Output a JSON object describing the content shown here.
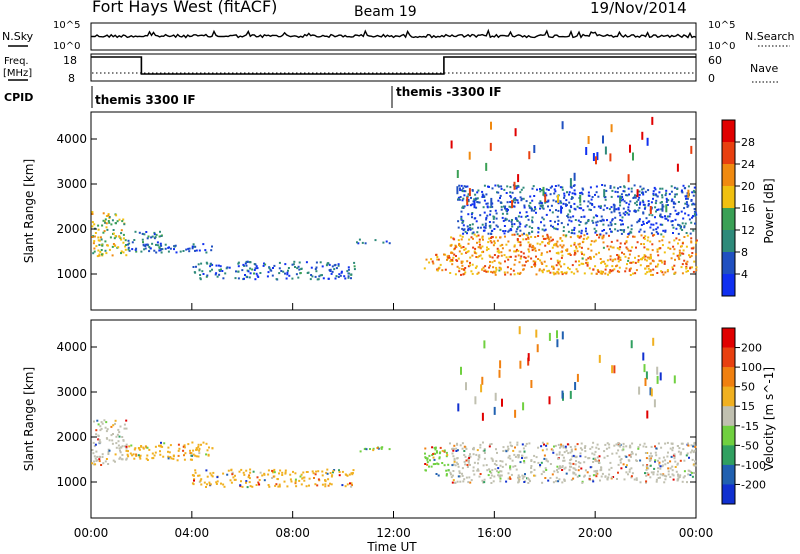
{
  "header": {
    "station": "Fort Hays West (fitACF)",
    "beam": "Beam 19",
    "date": "19/Nov/2014"
  },
  "noise_panel": {
    "left_label": "N.Sky",
    "right_label": "N.Search",
    "left_ticks": [
      "10^5",
      "10^0"
    ],
    "right_ticks": [
      "10^5",
      "10^0"
    ]
  },
  "freq_panel": {
    "left_label_1": "Freq.",
    "left_label_2": "[MHz]",
    "right_label": "Nave",
    "left_ticks": [
      18,
      8
    ],
    "right_ticks": [
      60,
      0
    ],
    "freq_steps": [
      {
        "start_hr": 0,
        "end_hr": 2,
        "level": "high"
      },
      {
        "start_hr": 2,
        "end_hr": 14,
        "level": "low"
      },
      {
        "start_hr": 14,
        "end_hr": 24,
        "level": "high"
      }
    ]
  },
  "cpid": {
    "label": "CPID",
    "segments": [
      {
        "start_hr": 0,
        "label": "themis 3300 IF"
      },
      {
        "start_hr": 12,
        "label": "themis -3300 IF"
      }
    ]
  },
  "chart_data": [
    {
      "type": "heatmap",
      "parameter": "power",
      "ylabel": "Slant Range [km]",
      "ylim": [
        200,
        4600
      ],
      "yticks": [
        1000,
        2000,
        3000,
        4000
      ],
      "xlim": [
        0,
        24
      ],
      "colorbar_label": "Power [dB]",
      "colorbar_ticks": [
        4,
        8,
        12,
        16,
        20,
        24,
        28
      ],
      "colors": [
        "#1030f0",
        "#2050c0",
        "#2e8a7a",
        "#3aa055",
        "#f0c010",
        "#f08a10",
        "#e84010",
        "#e00000"
      ],
      "regions": [
        {
          "start_hr": 0.0,
          "end_hr": 1.4,
          "r_lo": 1400,
          "r_hi": 2400,
          "level": 0.45
        },
        {
          "start_hr": 1.4,
          "end_hr": 2.8,
          "r_lo": 1500,
          "r_hi": 2000,
          "level": 0.2
        },
        {
          "start_hr": 2.0,
          "end_hr": 4.8,
          "r_lo": 1500,
          "r_hi": 1700,
          "level": 0.1
        },
        {
          "start_hr": 4.0,
          "end_hr": 10.5,
          "r_lo": 900,
          "r_hi": 1300,
          "level": 0.15
        },
        {
          "start_hr": 10.5,
          "end_hr": 12.0,
          "r_lo": 1700,
          "r_hi": 1800,
          "level": 0.1
        },
        {
          "start_hr": 13.2,
          "end_hr": 14.2,
          "r_lo": 1100,
          "r_hi": 1500,
          "level": 0.6
        },
        {
          "start_hr": 14.2,
          "end_hr": 24.0,
          "r_lo": 1000,
          "r_hi": 1900,
          "level": 0.6
        },
        {
          "start_hr": 14.5,
          "end_hr": 24.0,
          "r_lo": 1900,
          "r_hi": 3000,
          "level": 0.1
        }
      ]
    },
    {
      "type": "heatmap",
      "parameter": "velocity",
      "xlabel": "Time UT",
      "ylabel": "Slant Range [km]",
      "ylim": [
        200,
        4600
      ],
      "yticks": [
        1000,
        2000,
        3000,
        4000
      ],
      "xlim": [
        0,
        24
      ],
      "xticks": [
        "00:00",
        "04:00",
        "08:00",
        "12:00",
        "16:00",
        "20:00",
        "00:00"
      ],
      "colorbar_label": "Velocity [m s^-1]",
      "colorbar_ticks": [
        200,
        100,
        50,
        15,
        -15,
        -50,
        -100,
        -200
      ],
      "colors": [
        "#1030d0",
        "#2060b0",
        "#30a060",
        "#70d040",
        "#c0c0b0",
        "#f0b020",
        "#f08010",
        "#e84010",
        "#e00000"
      ],
      "regions": [
        {
          "start_hr": 0.0,
          "end_hr": 1.4,
          "r_lo": 1400,
          "r_hi": 2400,
          "level": "grey"
        },
        {
          "start_hr": 1.4,
          "end_hr": 4.8,
          "r_lo": 1500,
          "r_hi": 1900,
          "level": "orange"
        },
        {
          "start_hr": 4.0,
          "end_hr": 10.5,
          "r_lo": 900,
          "r_hi": 1300,
          "level": "orange"
        },
        {
          "start_hr": 10.5,
          "end_hr": 12.0,
          "r_lo": 1700,
          "r_hi": 1800,
          "level": "green"
        },
        {
          "start_hr": 13.2,
          "end_hr": 14.2,
          "r_lo": 1100,
          "r_hi": 1800,
          "level": "green"
        },
        {
          "start_hr": 14.2,
          "end_hr": 24.0,
          "r_lo": 1000,
          "r_hi": 1900,
          "level": "grey"
        }
      ]
    }
  ]
}
